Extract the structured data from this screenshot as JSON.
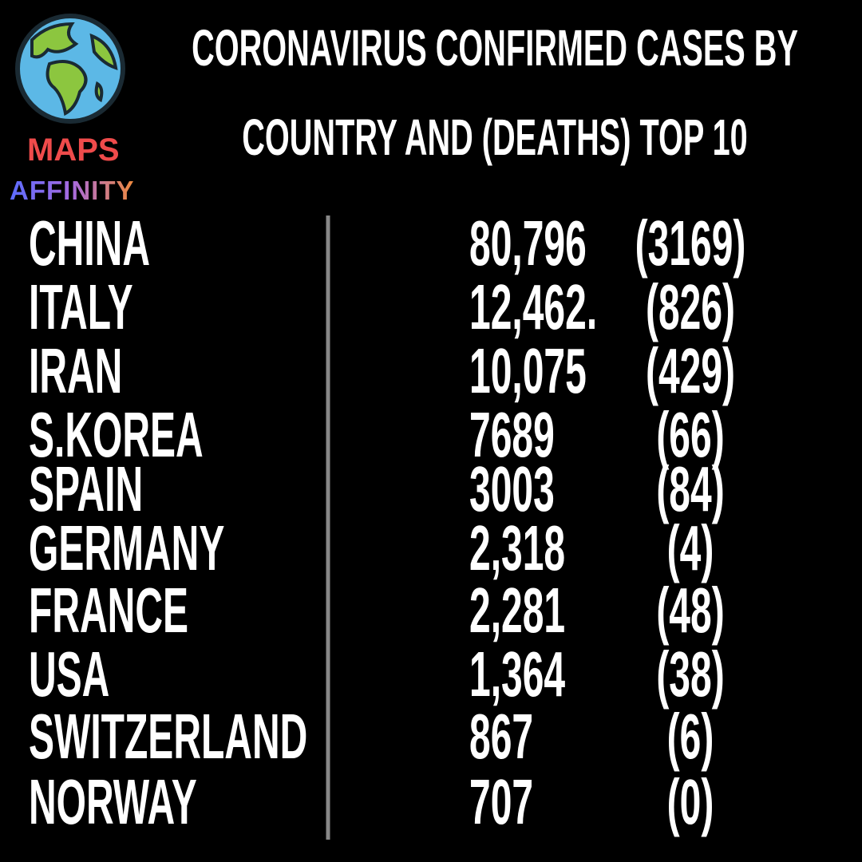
{
  "logo": {
    "line1": "MAPS",
    "line2": "AFFINITY"
  },
  "header": {
    "title_line1": "CORONAVIRUS CONFIRMED CASES BY",
    "title_line2": "COUNTRY AND (DEATHS) TOP 10"
  },
  "table": {
    "rows": [
      [
        "CHINA",
        "80,796",
        "(3169)"
      ],
      [
        "ITALY",
        "12,462.",
        "(826)"
      ],
      [
        "IRAN",
        "10,075",
        "(429)"
      ],
      [
        "S.KOREA",
        "7689",
        "(66)"
      ],
      [
        "SPAIN",
        "3003",
        "(84)"
      ],
      [
        "GERMANY",
        "2,318",
        "(4)"
      ],
      [
        "FRANCE",
        "2,281",
        "(48)"
      ],
      [
        "USA",
        "1,364",
        "(38)"
      ],
      [
        "SWITZERLAND",
        "867",
        "(6)"
      ],
      [
        "NORWAY",
        "707",
        "(0)"
      ]
    ]
  }
}
